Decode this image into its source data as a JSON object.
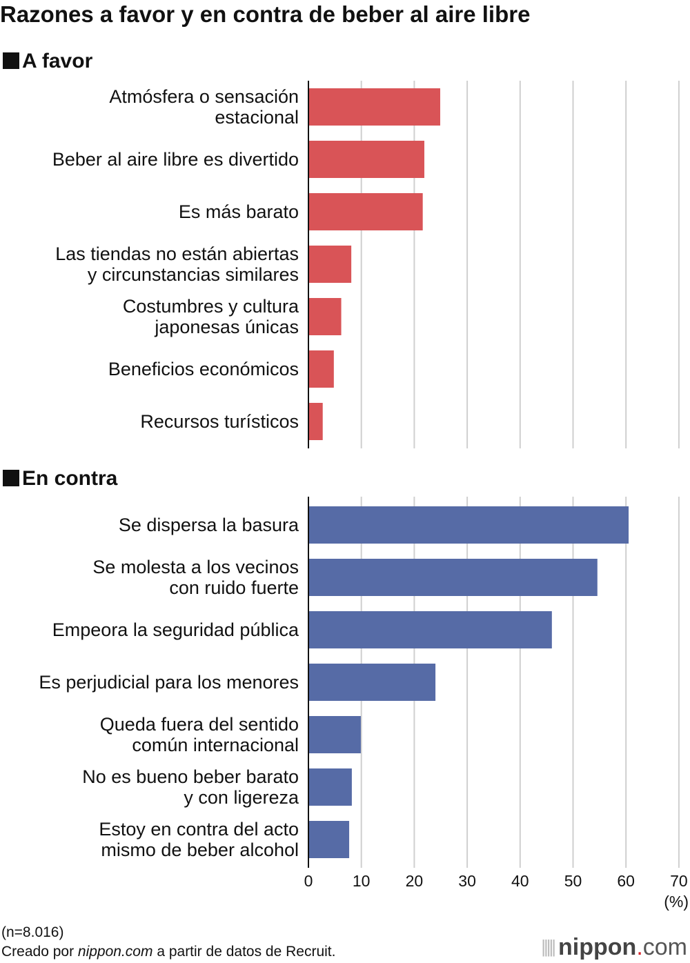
{
  "chart_data": [
    {
      "type": "bar",
      "orientation": "horizontal",
      "title": "Razones a favor y en contra de beber al aire libre",
      "section": "A favor",
      "color": "#d95457",
      "categories": [
        "Atmósfera o sensación\nestacional",
        "Beber al aire libre es divertido",
        "Es más barato",
        "Las tiendas no están abiertas\ny circunstancias similares",
        "Costumbres y cultura\njaponesas únicas",
        "Beneficios económicos",
        "Recursos turísticos"
      ],
      "values": [
        24.9,
        21.9,
        21.6,
        8.1,
        6.2,
        4.8,
        2.7
      ],
      "xlim": [
        0,
        70
      ],
      "grid": true
    },
    {
      "type": "bar",
      "orientation": "horizontal",
      "section": "En contra",
      "color": "#566ba6",
      "categories": [
        "Se dispersa la basura",
        "Se molesta a los vecinos\ncon ruido fuerte",
        "Empeora la seguridad pública",
        "Es perjudicial para los menores",
        "Queda fuera del sentido\ncomún internacional",
        "No es bueno beber barato\ny con ligereza",
        "Estoy en contra del acto\nmismo de beber alcohol"
      ],
      "values": [
        60.5,
        54.6,
        46.0,
        24.0,
        9.9,
        8.2,
        7.7
      ],
      "xlim": [
        0,
        70
      ],
      "xticks": [
        "0",
        "10",
        "20",
        "30",
        "40",
        "50",
        "60",
        "70"
      ],
      "xunit": "(%)",
      "grid": true
    }
  ],
  "header": {
    "title": "Razones a favor y en contra de beber al aire libre"
  },
  "sections": {
    "favor": "A favor",
    "contra": "En contra"
  },
  "footer": {
    "sample": "(n=8.016)",
    "credit_pre": "Creado por ",
    "credit_site": "nippon.com",
    "credit_post": " a partir de datos de Recruit.",
    "logo_main": "nippon",
    "logo_dot": ".",
    "logo_tld": "com"
  }
}
